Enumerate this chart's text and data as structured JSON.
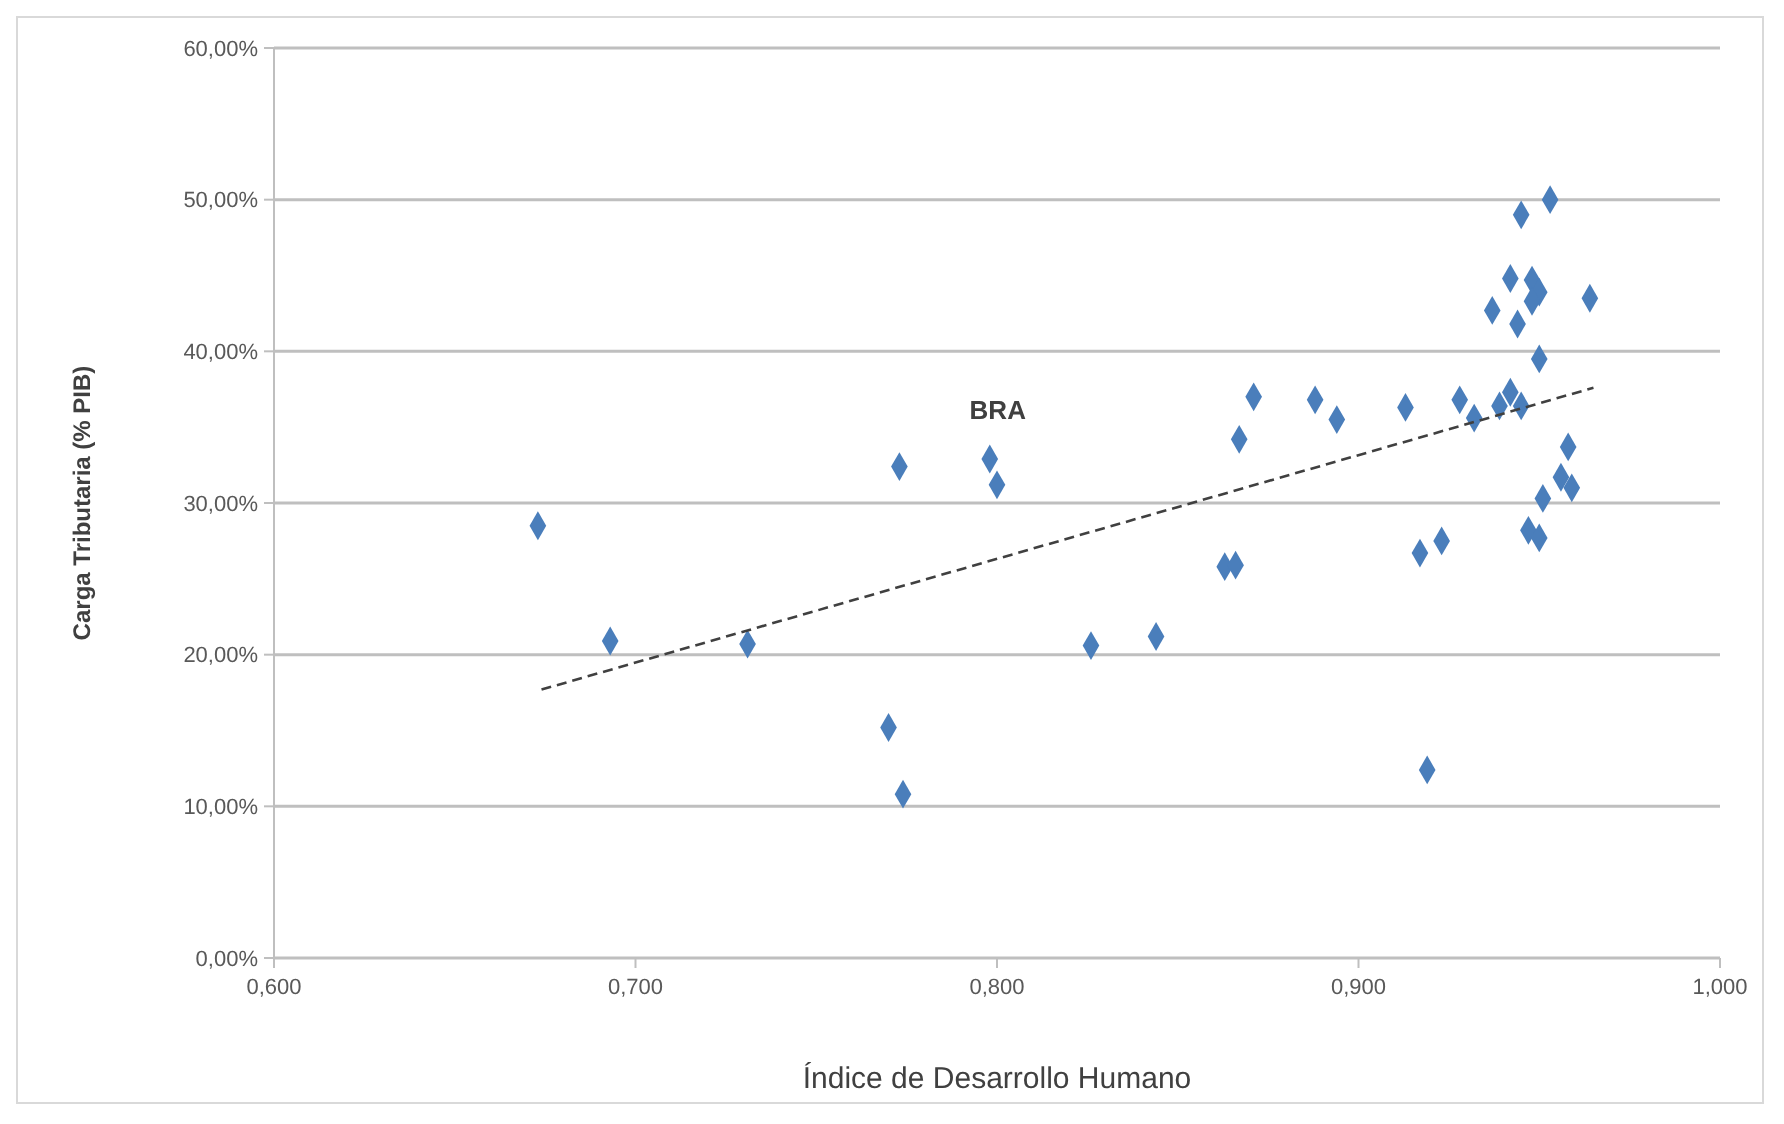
{
  "chart_data": {
    "type": "scatter",
    "xlabel": "Índice de Desarrollo Humano",
    "ylabel": "Carga Tributaria (% PIB)",
    "xlim": [
      0.6,
      1.0
    ],
    "ylim": [
      0,
      60
    ],
    "xticks": [
      {
        "value": 0.6,
        "label": "0,600"
      },
      {
        "value": 0.7,
        "label": "0,700"
      },
      {
        "value": 0.8,
        "label": "0,800"
      },
      {
        "value": 0.9,
        "label": "0,900"
      },
      {
        "value": 1.0,
        "label": "1,000"
      }
    ],
    "yticks": [
      {
        "value": 0,
        "label": "0,00%"
      },
      {
        "value": 10,
        "label": "10,00%"
      },
      {
        "value": 20,
        "label": "20,00%"
      },
      {
        "value": 30,
        "label": "30,00%"
      },
      {
        "value": 40,
        "label": "40,00%"
      },
      {
        "value": 50,
        "label": "50,00%"
      },
      {
        "value": 60,
        "label": "60,00%"
      }
    ],
    "grid": "y",
    "marker": "diamond",
    "annotations": [
      {
        "text": "BRA",
        "x": 0.798,
        "y": 32.9
      }
    ],
    "series": [
      {
        "color": "#4a7ebb",
        "x": [
          0.673,
          0.693,
          0.731,
          0.773,
          0.77,
          0.774,
          0.798,
          0.8,
          0.826,
          0.844,
          0.863,
          0.866,
          0.867,
          0.871,
          0.888,
          0.894,
          0.913,
          0.917,
          0.923,
          0.919,
          0.928,
          0.932,
          0.939,
          0.942,
          0.945,
          0.945,
          0.953,
          0.942,
          0.948,
          0.95,
          0.948,
          0.937,
          0.944,
          0.964,
          0.95,
          0.958,
          0.956,
          0.959,
          0.951,
          0.947,
          0.95
        ],
        "values": [
          28.5,
          20.9,
          20.7,
          32.4,
          15.2,
          10.8,
          32.9,
          31.2,
          20.6,
          21.2,
          25.8,
          25.9,
          34.2,
          37.0,
          36.8,
          35.5,
          36.3,
          26.7,
          27.5,
          12.4,
          36.8,
          35.6,
          36.4,
          37.3,
          36.4,
          49.0,
          50.0,
          44.8,
          44.7,
          43.9,
          43.3,
          42.7,
          41.8,
          43.5,
          39.5,
          33.7,
          31.7,
          31.0,
          30.3,
          28.2,
          27.7
        ]
      },
      {
        "type": "line",
        "color": "#404040",
        "line_style": "dashed",
        "marker": "none",
        "x": [
          0.674,
          0.965
        ],
        "values": [
          17.7,
          37.6
        ]
      }
    ]
  }
}
